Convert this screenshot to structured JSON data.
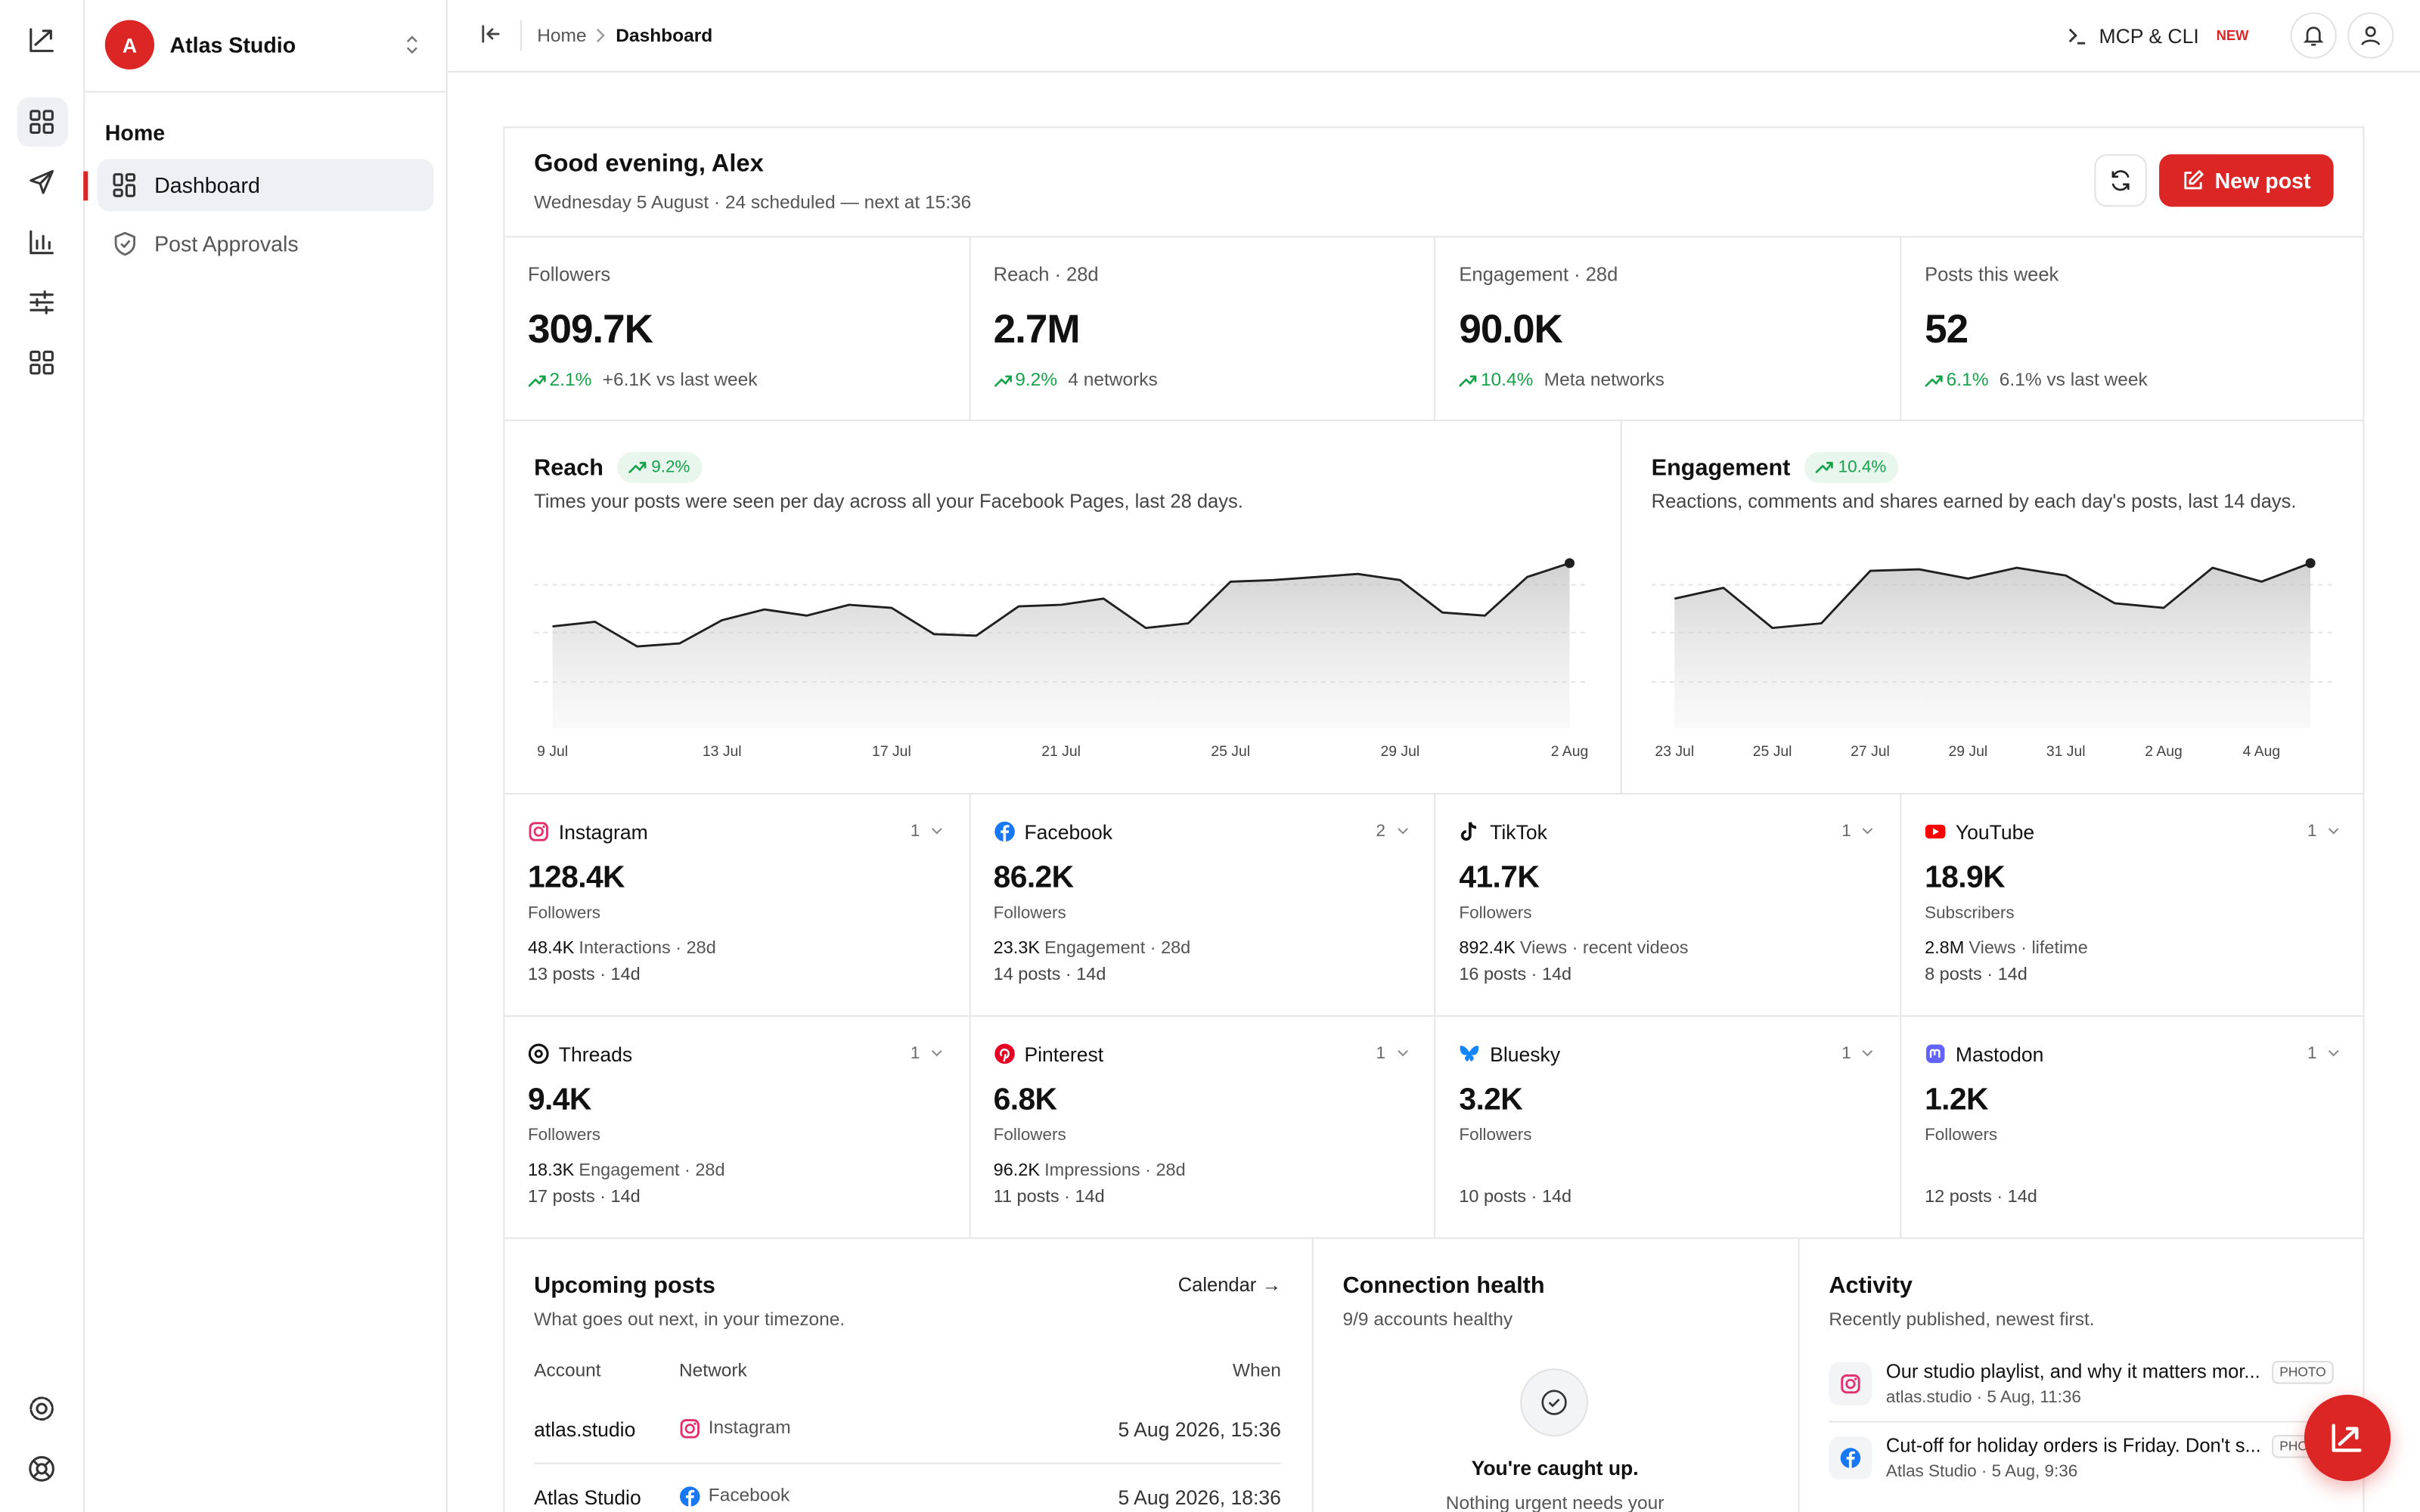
{
  "app": {
    "workspace": "Atlas Studio",
    "workspace_initial": "A"
  },
  "sidebar": {
    "section": "Home",
    "items": [
      "Dashboard",
      "Post Approvals"
    ]
  },
  "topbar": {
    "breadcrumb": [
      "Home",
      "Dashboard"
    ],
    "mcp": "MCP & CLI",
    "badge": "NEW"
  },
  "header": {
    "greeting": "Good evening, Alex",
    "subtitle": "Wednesday 5 August · 24 scheduled — next at 15:36",
    "new_post": "New post"
  },
  "stats": [
    {
      "label": "Followers",
      "value": "309.7K",
      "change": "2.1%",
      "note": "+6.1K vs last week"
    },
    {
      "label": "Reach · 28d",
      "value": "2.7M",
      "change": "9.2%",
      "note": "4 networks"
    },
    {
      "label": "Engagement · 28d",
      "value": "90.0K",
      "change": "10.4%",
      "note": "Meta networks"
    },
    {
      "label": "Posts this week",
      "value": "52",
      "change": "6.1%",
      "note": "6.1% vs last week"
    }
  ],
  "chart_data": [
    {
      "type": "line",
      "title": "Reach",
      "badge": "9.2%",
      "subtitle": "Times your posts were seen per day across all your Facebook Pages, last 28 days.",
      "categories": [
        "9 Jul",
        null,
        null,
        null,
        "13 Jul",
        null,
        null,
        null,
        "17 Jul",
        null,
        null,
        null,
        "21 Jul",
        null,
        null,
        null,
        "25 Jul",
        null,
        null,
        null,
        "29 Jul",
        null,
        null,
        null,
        "2 Aug"
      ],
      "values": [
        66,
        69,
        53,
        55,
        70,
        77,
        73,
        80,
        78,
        61,
        60,
        79,
        80,
        84,
        65,
        68,
        95,
        96,
        98,
        100,
        96,
        75,
        73,
        98,
        107
      ],
      "ylim": [
        0,
        120
      ],
      "color": "#1f1f1f"
    },
    {
      "type": "line",
      "title": "Engagement",
      "badge": "10.4%",
      "subtitle": "Reactions, comments and shares earned by each day's posts, last 14 days.",
      "categories": [
        "23 Jul",
        null,
        "25 Jul",
        null,
        "27 Jul",
        null,
        "29 Jul",
        null,
        "31 Jul",
        null,
        "2 Aug",
        null,
        "4 Aug",
        null
      ],
      "values": [
        84,
        91,
        65,
        68,
        102,
        103,
        97,
        104,
        99,
        81,
        78,
        104,
        95,
        107
      ],
      "ylim": [
        0,
        120
      ],
      "color": "#1f1f1f"
    }
  ],
  "networks": [
    {
      "name": "Instagram",
      "count": "1",
      "value": "128.4K",
      "unit": "Followers",
      "metric_value": "48.4K",
      "metric_label": "Interactions · 28d",
      "posts": "13 posts · 14d"
    },
    {
      "name": "Facebook",
      "count": "2",
      "value": "86.2K",
      "unit": "Followers",
      "metric_value": "23.3K",
      "metric_label": "Engagement · 28d",
      "posts": "14 posts · 14d"
    },
    {
      "name": "TikTok",
      "count": "1",
      "value": "41.7K",
      "unit": "Followers",
      "metric_value": "892.4K",
      "metric_label": "Views · recent videos",
      "posts": "16 posts · 14d"
    },
    {
      "name": "YouTube",
      "count": "1",
      "value": "18.9K",
      "unit": "Subscribers",
      "metric_value": "2.8M",
      "metric_label": "Views · lifetime",
      "posts": "8 posts · 14d"
    },
    {
      "name": "Threads",
      "count": "1",
      "value": "9.4K",
      "unit": "Followers",
      "metric_value": "18.3K",
      "metric_label": "Engagement · 28d",
      "posts": "17 posts · 14d"
    },
    {
      "name": "Pinterest",
      "count": "1",
      "value": "6.8K",
      "unit": "Followers",
      "metric_value": "96.2K",
      "metric_label": "Impressions · 28d",
      "posts": "11 posts · 14d"
    },
    {
      "name": "Bluesky",
      "count": "1",
      "value": "3.2K",
      "unit": "Followers",
      "posts": "10 posts · 14d"
    },
    {
      "name": "Mastodon",
      "count": "1",
      "value": "1.2K",
      "unit": "Followers",
      "posts": "12 posts · 14d"
    }
  ],
  "upcoming": {
    "title": "Upcoming posts",
    "subtitle": "What goes out next, in your timezone.",
    "link": "Calendar →",
    "columns": [
      "Account",
      "Network",
      "When"
    ],
    "rows": [
      [
        "atlas.studio",
        "Instagram",
        "5 Aug 2026, 15:36"
      ],
      [
        "Atlas Studio",
        "Facebook",
        "5 Aug 2026, 18:36"
      ]
    ]
  },
  "health": {
    "title": "Connection health",
    "subtitle": "9/9 accounts healthy",
    "empty_title": "You're caught up.",
    "empty_text": "Nothing urgent needs your"
  },
  "activity": {
    "title": "Activity",
    "subtitle": "Recently published, newest first.",
    "items": [
      {
        "text": "Our studio playlist, and why it matters mor...",
        "tag": "PHOTO",
        "meta": "atlas.studio · 5 Aug, 11:36"
      },
      {
        "text": "Cut-off for holiday orders is Friday. Don't s...",
        "tag": "PHOTO",
        "meta": "Atlas Studio · 5 Aug, 9:36"
      }
    ]
  }
}
